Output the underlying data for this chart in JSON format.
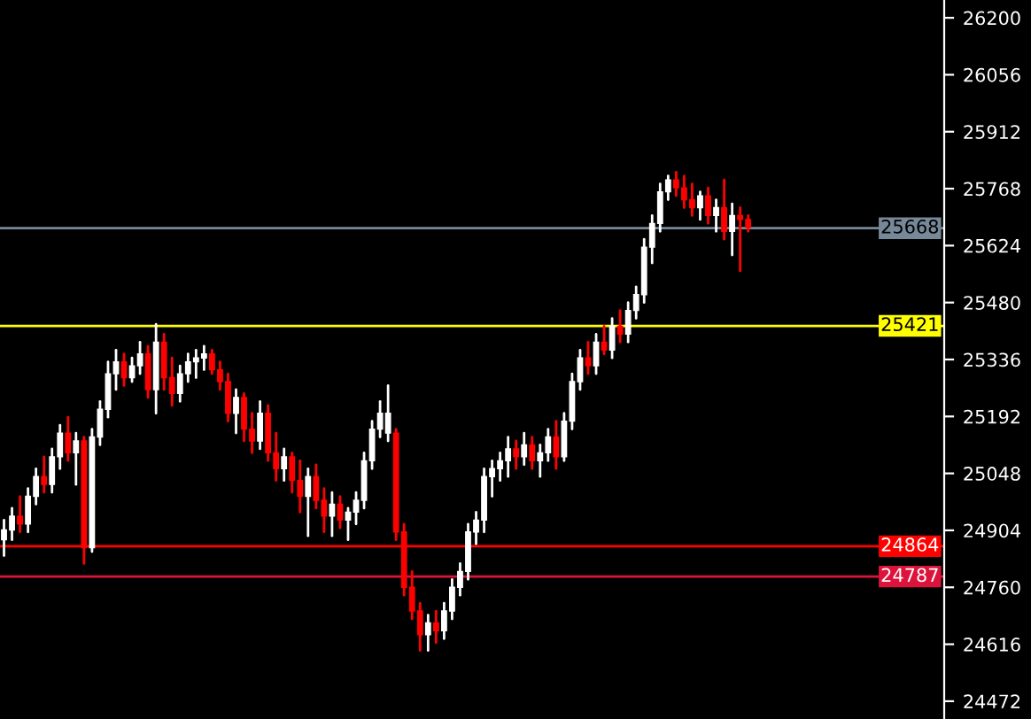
{
  "chart_data": {
    "type": "candlestick",
    "categories": [
      null,
      null,
      null,
      null,
      null,
      null,
      null,
      null,
      null,
      null,
      null,
      null,
      null,
      null,
      null,
      null,
      null,
      null,
      null,
      null,
      null,
      null,
      null,
      null,
      null,
      null,
      null,
      null,
      null,
      null,
      null,
      null,
      null,
      null,
      null,
      null,
      null,
      null,
      null,
      null,
      null,
      null,
      null,
      null,
      null,
      null,
      null,
      null,
      null,
      null,
      null,
      null,
      null,
      null,
      null,
      null,
      null,
      null,
      null,
      null,
      null,
      null,
      null,
      null,
      null,
      null,
      null,
      null,
      null,
      null,
      null,
      null,
      null,
      null,
      null,
      null,
      null,
      null,
      null,
      null,
      null,
      null,
      null,
      null,
      null,
      null,
      null,
      null,
      null,
      null,
      null,
      null,
      null,
      null,
      null,
      null,
      null,
      null,
      null,
      null,
      null,
      null,
      null,
      null,
      null,
      null,
      null,
      null,
      null,
      null,
      null,
      null,
      null,
      null,
      null,
      null,
      null,
      null
    ],
    "ohlc": [
      [
        24880,
        24930,
        24840,
        24905
      ],
      [
        24905,
        24960,
        24880,
        24940
      ],
      [
        24940,
        24990,
        24900,
        24920
      ],
      [
        24920,
        25010,
        24900,
        24990
      ],
      [
        24990,
        25060,
        24970,
        25040
      ],
      [
        25040,
        25090,
        25000,
        25020
      ],
      [
        25020,
        25110,
        25000,
        25090
      ],
      [
        25090,
        25170,
        25060,
        25150
      ],
      [
        25150,
        25190,
        25080,
        25100
      ],
      [
        25100,
        25150,
        25020,
        25130
      ],
      [
        25130,
        25140,
        24820,
        24860
      ],
      [
        24860,
        25160,
        24850,
        25140
      ],
      [
        25140,
        25230,
        25120,
        25210
      ],
      [
        25210,
        25330,
        25190,
        25300
      ],
      [
        25300,
        25360,
        25260,
        25330
      ],
      [
        25330,
        25350,
        25270,
        25290
      ],
      [
        25290,
        25340,
        25280,
        25320
      ],
      [
        25320,
        25380,
        25300,
        25350
      ],
      [
        25350,
        25370,
        25240,
        25260
      ],
      [
        25260,
        25425,
        25200,
        25380
      ],
      [
        25380,
        25400,
        25260,
        25290
      ],
      [
        25290,
        25340,
        25220,
        25250
      ],
      [
        25250,
        25320,
        25230,
        25300
      ],
      [
        25300,
        25350,
        25280,
        25330
      ],
      [
        25330,
        25360,
        25290,
        25340
      ],
      [
        25340,
        25370,
        25310,
        25350
      ],
      [
        25350,
        25360,
        25300,
        25310
      ],
      [
        25310,
        25330,
        25260,
        25280
      ],
      [
        25280,
        25300,
        25180,
        25200
      ],
      [
        25200,
        25260,
        25150,
        25240
      ],
      [
        25240,
        25250,
        25130,
        25160
      ],
      [
        25160,
        25200,
        25100,
        25130
      ],
      [
        25130,
        25230,
        25110,
        25200
      ],
      [
        25200,
        25220,
        25080,
        25100
      ],
      [
        25100,
        25150,
        25030,
        25060
      ],
      [
        25060,
        25110,
        25030,
        25090
      ],
      [
        25090,
        25100,
        25000,
        25030
      ],
      [
        25030,
        25080,
        24950,
        24990
      ],
      [
        24990,
        25060,
        24890,
        25040
      ],
      [
        25040,
        25070,
        24960,
        24980
      ],
      [
        24980,
        25010,
        24900,
        24940
      ],
      [
        24940,
        25000,
        24890,
        24970
      ],
      [
        24970,
        24990,
        24910,
        24930
      ],
      [
        24930,
        24960,
        24880,
        24950
      ],
      [
        24950,
        25000,
        24920,
        24980
      ],
      [
        24980,
        25100,
        24960,
        25080
      ],
      [
        25080,
        25180,
        25060,
        25160
      ],
      [
        25160,
        25230,
        25140,
        25200
      ],
      [
        25150,
        25270,
        25130,
        25200
      ],
      [
        25150,
        25160,
        24880,
        24900
      ],
      [
        24900,
        24920,
        24740,
        24760
      ],
      [
        24760,
        24800,
        24680,
        24700
      ],
      [
        24700,
        24720,
        24600,
        24640
      ],
      [
        24640,
        24690,
        24600,
        24670
      ],
      [
        24670,
        24700,
        24620,
        24650
      ],
      [
        24650,
        24720,
        24630,
        24700
      ],
      [
        24700,
        24780,
        24680,
        24760
      ],
      [
        24760,
        24820,
        24740,
        24800
      ],
      [
        24800,
        24920,
        24780,
        24900
      ],
      [
        24900,
        24950,
        24870,
        24930
      ],
      [
        24930,
        25060,
        24900,
        25040
      ],
      [
        25040,
        25080,
        24990,
        25060
      ],
      [
        25060,
        25100,
        25030,
        25080
      ],
      [
        25080,
        25140,
        25040,
        25110
      ],
      [
        25110,
        25130,
        25060,
        25090
      ],
      [
        25090,
        25150,
        25070,
        25120
      ],
      [
        25120,
        25140,
        25060,
        25080
      ],
      [
        25080,
        25120,
        25040,
        25100
      ],
      [
        25100,
        25160,
        25080,
        25140
      ],
      [
        25140,
        25180,
        25060,
        25090
      ],
      [
        25090,
        25200,
        25080,
        25180
      ],
      [
        25180,
        25300,
        25160,
        25280
      ],
      [
        25280,
        25360,
        25260,
        25340
      ],
      [
        25340,
        25380,
        25300,
        25320
      ],
      [
        25320,
        25400,
        25300,
        25380
      ],
      [
        25380,
        25420,
        25350,
        25360
      ],
      [
        25360,
        25440,
        25340,
        25420
      ],
      [
        25420,
        25460,
        25380,
        25400
      ],
      [
        25400,
        25480,
        25380,
        25460
      ],
      [
        25460,
        25520,
        25440,
        25500
      ],
      [
        25500,
        25640,
        25480,
        25620
      ],
      [
        25620,
        25700,
        25580,
        25680
      ],
      [
        25680,
        25780,
        25660,
        25760
      ],
      [
        25760,
        25800,
        25740,
        25790
      ],
      [
        25790,
        25810,
        25750,
        25770
      ],
      [
        25770,
        25800,
        25720,
        25740
      ],
      [
        25740,
        25780,
        25700,
        25720
      ],
      [
        25720,
        25760,
        25690,
        25750
      ],
      [
        25750,
        25770,
        25680,
        25700
      ],
      [
        25700,
        25740,
        25660,
        25720
      ],
      [
        25720,
        25790,
        25640,
        25660
      ],
      [
        25660,
        25730,
        25600,
        25700
      ],
      [
        25700,
        25720,
        25560,
        25690
      ],
      [
        25690,
        25700,
        25660,
        25670
      ],
      null,
      null,
      null,
      null,
      null,
      null,
      null,
      null,
      null,
      null,
      null,
      null,
      null,
      null,
      null,
      null,
      null,
      null,
      null,
      null,
      null,
      null,
      null,
      null
    ],
    "ylim": [
      24427,
      26245
    ],
    "yticks": [
      24472,
      24616,
      24760,
      24904,
      25048,
      25192,
      25336,
      25480,
      25624,
      25768,
      25912,
      26056,
      26200
    ],
    "ref_lines": [
      {
        "axis": "y",
        "value": 25668,
        "label": "25668",
        "color": "#778899"
      },
      {
        "axis": "y",
        "value": 25421,
        "label": "25421",
        "color": "#ffff00"
      },
      {
        "axis": "y",
        "value": 24864,
        "label": "24864",
        "color": "#ff0000"
      },
      {
        "axis": "y",
        "value": 24787,
        "label": "24787",
        "color": "#dc143c"
      }
    ],
    "grid": false
  }
}
